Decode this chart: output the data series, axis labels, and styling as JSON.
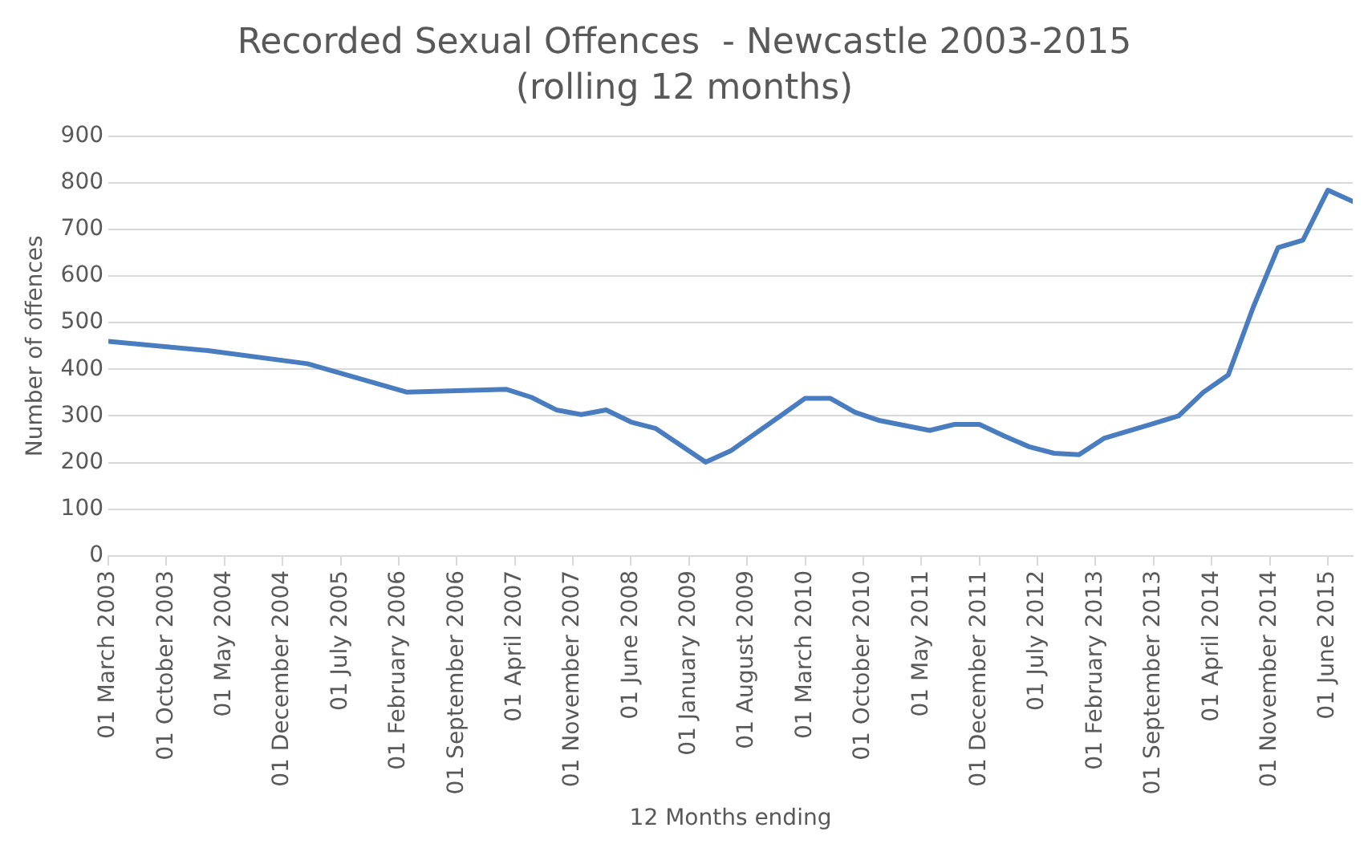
{
  "chart_data": {
    "type": "line",
    "title": "Recorded Sexual Offences  - Newcastle 2003-2015",
    "subtitle": "(rolling 12 months)",
    "xlabel": "12 Months ending",
    "ylabel": "Number of offences",
    "x": [
      "2003-03",
      "2004-03",
      "2005-03",
      "2006-03",
      "2007-03",
      "2007-06",
      "2007-09",
      "2007-12",
      "2008-03",
      "2008-06",
      "2008-09",
      "2009-03",
      "2009-06",
      "2009-12",
      "2010-03",
      "2010-06",
      "2010-09",
      "2010-12",
      "2011-06",
      "2011-09",
      "2011-12",
      "2012-03",
      "2012-06",
      "2012-09",
      "2012-12",
      "2013-03",
      "2013-06",
      "2013-09",
      "2013-12",
      "2014-03",
      "2014-06",
      "2014-09",
      "2014-12",
      "2015-03",
      "2015-06",
      "2015-09"
    ],
    "series": [
      {
        "color": "#4a7dbf",
        "values": [
          460,
          440,
          412,
          351,
          357,
          340,
          313,
          303,
          313,
          287,
          273,
          201,
          225,
          300,
          338,
          338,
          308,
          290,
          269,
          282,
          282,
          257,
          234,
          220,
          217,
          252,
          268,
          284,
          300,
          351,
          388,
          533,
          661,
          677,
          784,
          760
        ]
      }
    ],
    "xlim": [
      "2003-03",
      "2015-09"
    ],
    "xticks": [
      {
        "value": "2003-03",
        "label": "01 March 2003"
      },
      {
        "value": "2003-10",
        "label": "01 October 2003"
      },
      {
        "value": "2004-05",
        "label": "01 May 2004"
      },
      {
        "value": "2004-12",
        "label": "01 December 2004"
      },
      {
        "value": "2005-07",
        "label": "01 July 2005"
      },
      {
        "value": "2006-02",
        "label": "01 February 2006"
      },
      {
        "value": "2006-09",
        "label": "01 September 2006"
      },
      {
        "value": "2007-04",
        "label": "01 April 2007"
      },
      {
        "value": "2007-11",
        "label": "01 November 2007"
      },
      {
        "value": "2008-06",
        "label": "01 June 2008"
      },
      {
        "value": "2009-01",
        "label": "01 January 2009"
      },
      {
        "value": "2009-08",
        "label": "01 August 2009"
      },
      {
        "value": "2010-03",
        "label": "01 March 2010"
      },
      {
        "value": "2010-10",
        "label": "01 October 2010"
      },
      {
        "value": "2011-05",
        "label": "01 May 2011"
      },
      {
        "value": "2011-12",
        "label": "01 December 2011"
      },
      {
        "value": "2012-07",
        "label": "01 July 2012"
      },
      {
        "value": "2013-02",
        "label": "01 February 2013"
      },
      {
        "value": "2013-09",
        "label": "01 September 2013"
      },
      {
        "value": "2014-04",
        "label": "01 April 2014"
      },
      {
        "value": "2014-11",
        "label": "01 November 2014"
      },
      {
        "value": "2015-06",
        "label": "01 June 2015"
      }
    ],
    "ylim": [
      0,
      900
    ],
    "yticks": [
      0,
      100,
      200,
      300,
      400,
      500,
      600,
      700,
      800,
      900
    ],
    "grid": "y",
    "legend": false,
    "marker": "none",
    "line_style": "solid"
  }
}
